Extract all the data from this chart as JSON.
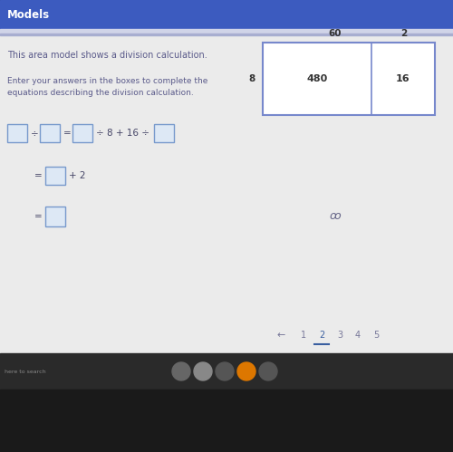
{
  "title_bar_color": "#3c5bbf",
  "title_bar_sep_color": "#c8d0e8",
  "title_bar_text": "Models",
  "title_bar_text_color": "#ffffff",
  "main_bg": "#e8e8e8",
  "content_bg": "#f0f0f0",
  "heading_text": "This area model shows a division calculation.",
  "subtext_line1": "Enter your answers in the boxes to complete the",
  "subtext_line2": "equations describing the division calculation.",
  "text_color": "#5a5a8a",
  "table_header_60": "60",
  "table_header_2": "2",
  "table_left_8": "8",
  "table_val_480": "480",
  "table_val_16": "16",
  "table_border_color": "#7788cc",
  "table_facecolor": "#ffffff",
  "input_box_edge": "#7799cc",
  "input_box_face": "#dde8f5",
  "eq_text_color": "#444466",
  "pagination_arrow": "←",
  "pagination_nums": [
    "1",
    "2",
    "3",
    "4",
    "5"
  ],
  "active_page": "2",
  "active_page_color": "#3a5fa0",
  "inactive_page_color": "#777799",
  "taskbar_bg": "#222222",
  "taskbar_strip_bg": "#333333",
  "search_text": "here to search",
  "search_text_color": "#888888",
  "icon_colors": [
    "#666666",
    "#888888",
    "#555555",
    "#dd7700",
    "#555555"
  ],
  "cursor_color": "#666688"
}
